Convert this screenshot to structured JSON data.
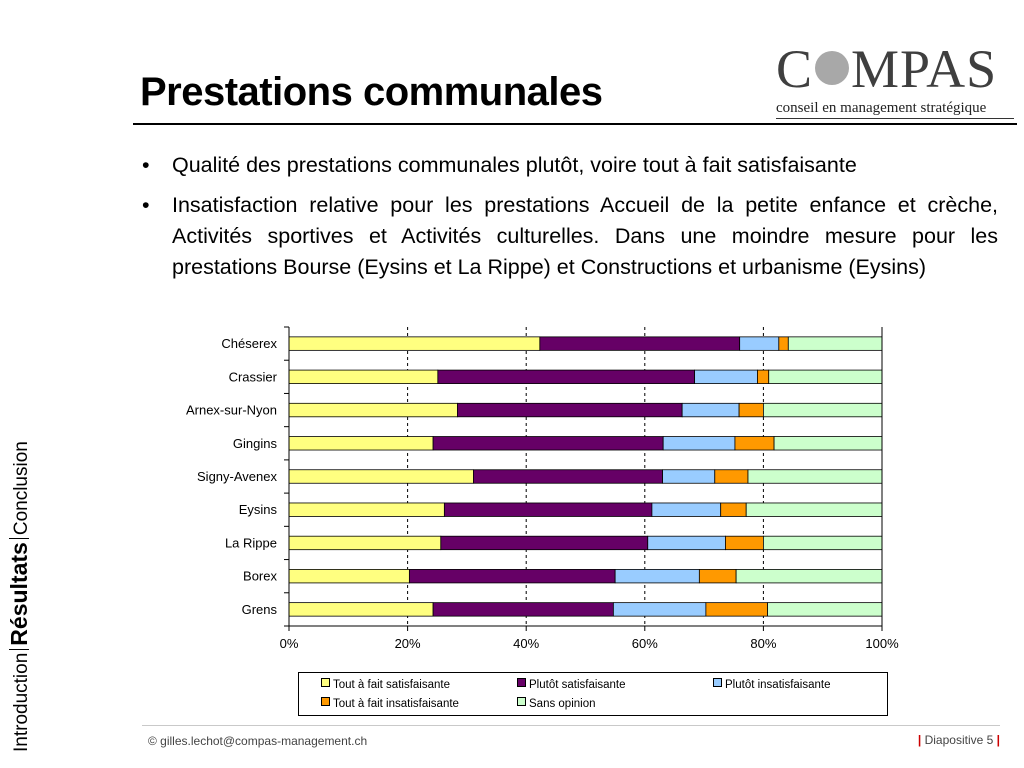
{
  "slide": {
    "title": "Prestations communales",
    "bullets": [
      "Qualité des prestations communales plutôt, voire tout à fait satisfaisante",
      "Insatisfaction relative pour les prestations Accueil de la petite enfance et crèche, Activités sportives et Activités culturelles. Dans une moindre mesure pour les prestations Bourse (Eysins et La Rippe) et Constructions et urbanisme (Eysins)"
    ],
    "bullet_glyph": "•"
  },
  "logo": {
    "word_before": "C",
    "word_after": "MPAS",
    "tagline": "conseil en management stratégique"
  },
  "side_nav": {
    "items": [
      "Introduction",
      "Résultats",
      "Conclusion"
    ],
    "active": "Résultats"
  },
  "footer": {
    "left": "© gilles.lechot@compas-management.ch",
    "bar": "|",
    "slide_label": "Diapositive 5"
  },
  "colors": {
    "tout_a_fait_satisfaisante": "#FFFF80",
    "plutot_satisfaisante": "#660066",
    "plutot_insatisfaisante": "#99CCFF",
    "tout_a_fait_insatisfaisante": "#FF9900",
    "sans_opinion": "#CCFFCC"
  },
  "chart_data": {
    "type": "bar",
    "orientation": "horizontal",
    "stacked": "percent",
    "categories": [
      "Chéserex",
      "Crassier",
      "Arnex-sur-Nyon",
      "Gingins",
      "Signy-Avenex",
      "Eysins",
      "La Rippe",
      "Borex",
      "Grens"
    ],
    "series": [
      {
        "name": "Tout à fait satisfaisante",
        "color": "#FFFF80",
        "values": [
          42.3,
          25.1,
          28.4,
          24.3,
          31.1,
          26.2,
          25.6,
          20.3,
          24.3
        ]
      },
      {
        "name": "Plutôt satisfaisante",
        "color": "#660066",
        "values": [
          33.7,
          43.3,
          37.9,
          38.8,
          31.9,
          35.0,
          34.9,
          34.7,
          30.4
        ]
      },
      {
        "name": "Plutôt insatisfaisante",
        "color": "#99CCFF",
        "values": [
          6.6,
          10.6,
          9.6,
          12.1,
          8.8,
          11.6,
          13.1,
          14.2,
          15.6
        ]
      },
      {
        "name": "Tout à fait insatisfaisante",
        "color": "#FF9900",
        "values": [
          1.6,
          1.9,
          4.1,
          6.6,
          5.6,
          4.3,
          6.4,
          6.2,
          10.4
        ]
      },
      {
        "name": "Sans opinion",
        "color": "#CCFFCC",
        "values": [
          15.8,
          19.1,
          20.0,
          18.2,
          22.6,
          22.9,
          20.0,
          24.6,
          19.3
        ]
      }
    ],
    "xlim": [
      0,
      100
    ],
    "xticks": [
      "0%",
      "20%",
      "40%",
      "60%",
      "80%",
      "100%"
    ],
    "grid": "vertical dashed",
    "legend_position": "bottom"
  }
}
